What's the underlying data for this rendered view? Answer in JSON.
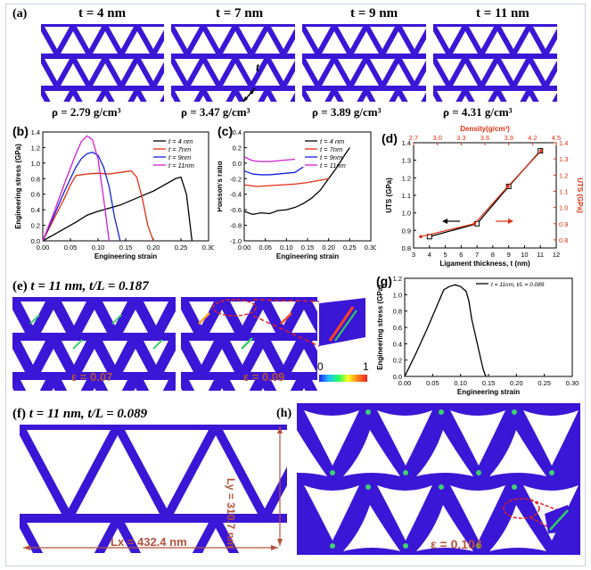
{
  "panel_a": {
    "label": "(a)",
    "tiles": [
      {
        "title": "t = 4 nm",
        "rho": "ρ = 2.79 g/cm³"
      },
      {
        "title": "t = 7 nm",
        "rho": "ρ = 3.47 g/cm³"
      },
      {
        "title": "t = 9 nm",
        "rho": "ρ = 3.89 g/cm³"
      },
      {
        "title": "t = 11 nm",
        "rho": "ρ = 4.31 g/cm³"
      }
    ],
    "t_marker": "t"
  },
  "panel_e": {
    "label": "(e)",
    "title": "t = 11 nm, t/L = 0.187",
    "strain1": "ε = 0.07",
    "strain2": "ε = 0.09",
    "cbar_min": "0",
    "cbar_max": "1"
  },
  "panel_f": {
    "label": "(f)",
    "title": "t = 11 nm, t/L = 0.089",
    "lx": "Lx = 432.4 nm",
    "ly": "Ly = 310.7 nm"
  },
  "panel_h": {
    "label": "(h)",
    "strain": "ε = 0.104"
  },
  "colors": {
    "lattice": "#3a16d6",
    "annot": "#b5533c",
    "zoom": "#e02020"
  },
  "chart_data": [
    {
      "panel": "(b)",
      "type": "line",
      "xlabel": "Engineering strain",
      "ylabel": "Engineering stress (GPa)",
      "xlim": [
        0,
        0.3
      ],
      "ylim": [
        0,
        1.4
      ],
      "xticks": [
        "0.00",
        "0.05",
        "0.10",
        "0.15",
        "0.20",
        "0.25",
        "0.30"
      ],
      "yticks": [
        "0.0",
        "0.2",
        "0.4",
        "0.6",
        "0.8",
        "1.0",
        "1.2",
        "1.4"
      ],
      "legend": "top-right",
      "series": [
        {
          "name": "t = 4 nm",
          "color": "#000000",
          "x": [
            0,
            0.02,
            0.04,
            0.06,
            0.08,
            0.1,
            0.12,
            0.14,
            0.16,
            0.18,
            0.2,
            0.22,
            0.24,
            0.25,
            0.26,
            0.27
          ],
          "y": [
            0,
            0.08,
            0.16,
            0.24,
            0.33,
            0.38,
            0.42,
            0.46,
            0.52,
            0.58,
            0.64,
            0.72,
            0.8,
            0.82,
            0.6,
            0
          ]
        },
        {
          "name": "t = 7nm",
          "color": "#e03010",
          "x": [
            0,
            0.02,
            0.04,
            0.05,
            0.06,
            0.08,
            0.1,
            0.12,
            0.14,
            0.16,
            0.17,
            0.18,
            0.19,
            0.2
          ],
          "y": [
            0,
            0.28,
            0.56,
            0.72,
            0.84,
            0.86,
            0.87,
            0.86,
            0.88,
            0.9,
            0.82,
            0.55,
            0.2,
            0
          ]
        },
        {
          "name": "t = 9nm",
          "color": "#1020e0",
          "x": [
            0,
            0.02,
            0.04,
            0.06,
            0.07,
            0.08,
            0.09,
            0.1,
            0.11,
            0.12,
            0.13,
            0.14
          ],
          "y": [
            0,
            0.32,
            0.65,
            0.95,
            1.06,
            1.12,
            1.14,
            1.1,
            0.95,
            0.7,
            0.3,
            0
          ]
        },
        {
          "name": "t = 11nm",
          "color": "#d020d0",
          "x": [
            0,
            0.02,
            0.04,
            0.06,
            0.07,
            0.08,
            0.09,
            0.1,
            0.11,
            0.12
          ],
          "y": [
            0,
            0.36,
            0.75,
            1.12,
            1.28,
            1.35,
            1.3,
            1.05,
            0.55,
            0
          ]
        }
      ]
    },
    {
      "panel": "(c)",
      "type": "line",
      "xlabel": "Engineering strain",
      "ylabel": "Poisson's ratio",
      "xlim": [
        0,
        0.3
      ],
      "ylim": [
        -1.0,
        0.4
      ],
      "xticks": [
        "0.00",
        "0.05",
        "0.10",
        "0.15",
        "0.20",
        "0.25",
        "0.30"
      ],
      "yticks": [
        "-1.0",
        "-0.8",
        "-0.6",
        "-0.4",
        "-0.2",
        "0.0",
        "0.2",
        "0.4"
      ],
      "legend": "top-right",
      "series": [
        {
          "name": "t = 4 nm",
          "color": "#000000",
          "x": [
            0.0,
            0.02,
            0.04,
            0.06,
            0.08,
            0.1,
            0.12,
            0.14,
            0.16,
            0.18,
            0.2,
            0.22,
            0.24,
            0.25
          ],
          "y": [
            -0.62,
            -0.66,
            -0.64,
            -0.65,
            -0.61,
            -0.6,
            -0.57,
            -0.52,
            -0.45,
            -0.35,
            -0.2,
            -0.05,
            0.12,
            0.2
          ]
        },
        {
          "name": "t = 7nm",
          "color": "#e03010",
          "x": [
            0.0,
            0.03,
            0.06,
            0.09,
            0.12,
            0.15,
            0.18,
            0.2
          ],
          "y": [
            -0.28,
            -0.3,
            -0.29,
            -0.28,
            -0.27,
            -0.25,
            -0.22,
            -0.2
          ]
        },
        {
          "name": "t = 9nm",
          "color": "#1020e0",
          "x": [
            0.0,
            0.02,
            0.04,
            0.06,
            0.08,
            0.1,
            0.12,
            0.14
          ],
          "y": [
            -0.1,
            -0.14,
            -0.15,
            -0.15,
            -0.14,
            -0.13,
            -0.12,
            -0.05
          ]
        },
        {
          "name": "t = 11nm",
          "color": "#d020d0",
          "x": [
            0.0,
            0.02,
            0.04,
            0.06,
            0.08,
            0.1,
            0.12
          ],
          "y": [
            0.08,
            0.03,
            0.02,
            0.02,
            0.03,
            0.04,
            0.05
          ]
        }
      ]
    },
    {
      "panel": "(d)",
      "type": "line",
      "xlabel": "Ligament thickness, t (nm)",
      "ylabel": "UTS (GPa)",
      "x2label": "Density(g/cm³)",
      "y2label": "UTS (GPa)",
      "xlim": [
        3,
        12
      ],
      "ylim": [
        0.75,
        1.4
      ],
      "x2lim": [
        2.7,
        4.5
      ],
      "y2lim": [
        0.75,
        1.4
      ],
      "xticks": [
        "3",
        "4",
        "5",
        "6",
        "7",
        "8",
        "9",
        "10",
        "11",
        "12"
      ],
      "yticks": [
        "0.8",
        "0.9",
        "1.0",
        "1.1",
        "1.2",
        "1.3",
        "1.4"
      ],
      "x2ticks": [
        "2.7",
        "3.0",
        "3.3",
        "3.6",
        "3.9",
        "4.2",
        "4.5"
      ],
      "y2ticks": [
        "0.8",
        "0.9",
        "1.0",
        "1.1",
        "1.2",
        "1.3",
        "1.4"
      ],
      "series": [
        {
          "name": "UTS vs t",
          "color": "#000000",
          "x": [
            4,
            7,
            9,
            11
          ],
          "y": [
            0.82,
            0.9,
            1.13,
            1.35
          ]
        },
        {
          "name": "UTS vs density",
          "color": "#e03010",
          "x": [
            2.79,
            3.47,
            3.89,
            4.31
          ],
          "y": [
            0.82,
            0.9,
            1.13,
            1.35
          ]
        }
      ]
    },
    {
      "panel": "(g)",
      "type": "line",
      "xlabel": "Engineering strain",
      "ylabel": "Engineering stress (GPa)",
      "xlim": [
        0,
        0.3
      ],
      "ylim": [
        0,
        1.2
      ],
      "xticks": [
        "0.00",
        "0.05",
        "0.10",
        "0.15",
        "0.20",
        "0.25",
        "0.30"
      ],
      "yticks": [
        "0.0",
        "0.2",
        "0.4",
        "0.6",
        "0.8",
        "1.0",
        "1.2"
      ],
      "legend": "top-right",
      "series": [
        {
          "name": "t = 11nm, t/L = 0.089",
          "color": "#000000",
          "x": [
            0,
            0.02,
            0.04,
            0.06,
            0.07,
            0.08,
            0.09,
            0.1,
            0.11,
            0.115,
            0.12,
            0.13,
            0.14,
            0.145
          ],
          "y": [
            0,
            0.28,
            0.58,
            0.9,
            1.06,
            1.1,
            1.12,
            1.1,
            1.04,
            0.92,
            0.7,
            0.4,
            0.1,
            0
          ]
        }
      ]
    }
  ]
}
